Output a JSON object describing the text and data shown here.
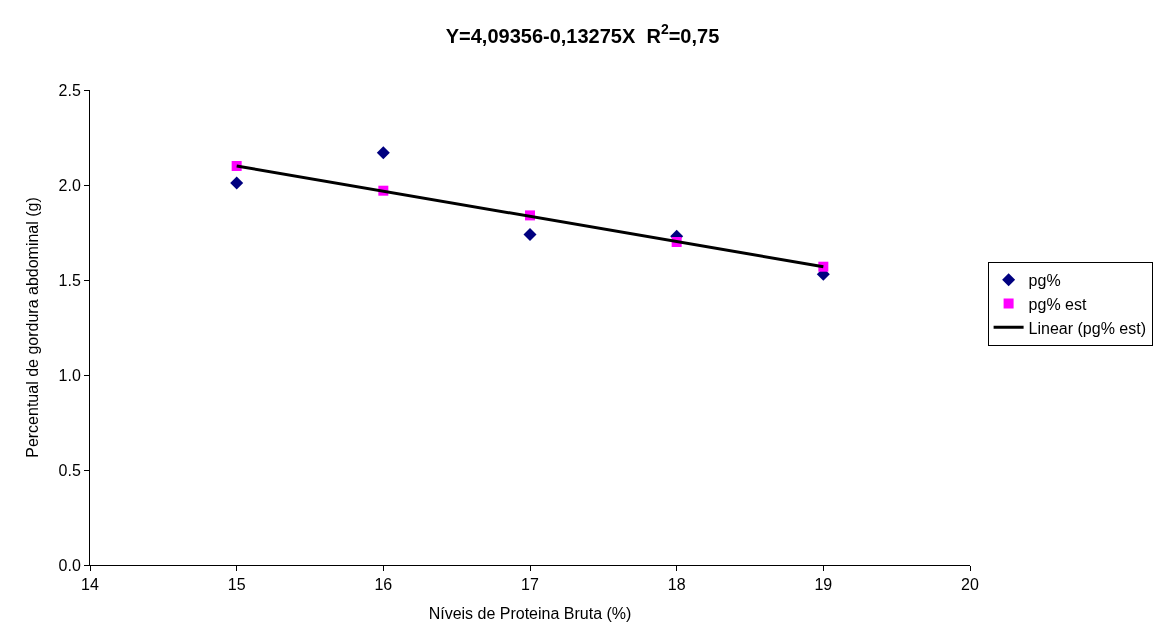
{
  "chart_data": {
    "type": "scatter",
    "title": "Y=4,09356-0,13275X  R$^{2}$=0,75",
    "xlabel": "Níveis de Proteina Bruta (%)",
    "ylabel": "Percentual de gordura abdominal (g)",
    "x": [
      15,
      16,
      17,
      18,
      19
    ],
    "series": [
      {
        "name": "pg%",
        "color": "#000080",
        "values": [
          2.01,
          2.17,
          1.74,
          1.73,
          1.53
        ],
        "marker": "diamond"
      },
      {
        "name": "pg% est",
        "color": "#ff00ff",
        "values": [
          2.1,
          1.97,
          1.84,
          1.7,
          1.57
        ],
        "marker": "square"
      },
      {
        "name": "Linear (pg% est)",
        "type": "line",
        "color": "#000000",
        "x": [
          15,
          19
        ],
        "values": [
          2.1,
          1.57
        ],
        "marker": "none",
        "line_style": "solid"
      }
    ],
    "xlim": [
      14,
      20
    ],
    "xticks": [
      14,
      15,
      16,
      17,
      18,
      19,
      20
    ],
    "ylim": [
      0,
      2.5
    ],
    "yticks": [
      {
        "value": 0,
        "label": "0.0"
      },
      {
        "value": 0.5,
        "label": "0.5"
      },
      {
        "value": 1,
        "label": "1.0"
      },
      {
        "value": 1.5,
        "label": "1.5"
      },
      {
        "value": 2,
        "label": "2.0"
      },
      {
        "value": 2.5,
        "label": "2.5"
      }
    ],
    "legend": "right"
  }
}
